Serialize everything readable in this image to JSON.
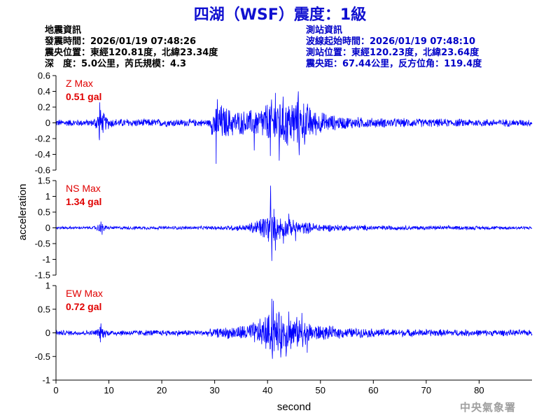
{
  "title": "四湖（WSF）震度：1級",
  "earthquake_info": {
    "heading": "地震資訊",
    "origin_time": "發震時間：2026/01/19 07:48:26",
    "epicenter": "震央位置：東經120.81度，北緯23.34度",
    "depth_magnitude": "深　度：5.0公里，芮氏規模：4.3"
  },
  "station_info": {
    "heading": "測站資訊",
    "wave_start": "波線起始時間：2026/01/19 07:48:10",
    "station_location": "測站位置：東經120.23度，北緯23.64度",
    "distance_azimuth": "震央距：67.44公里，反方位角：119.4度"
  },
  "credit": "中央氣象署",
  "chart_data": {
    "type": "line",
    "xlabel": "second",
    "ylabel": "acceleration",
    "xlim": [
      0,
      90
    ],
    "xticks": [
      0,
      10,
      20,
      30,
      40,
      50,
      60,
      70,
      80
    ],
    "line_color": "#0000ff",
    "max_label_color": "#e00000",
    "panels": [
      {
        "name": "Z",
        "max_title": "Z Max",
        "max_value": "0.51 gal",
        "ylim": [
          -0.6,
          0.6
        ],
        "yticks": [
          -0.6,
          -0.4,
          -0.2,
          0,
          0.2,
          0.4,
          0.6
        ],
        "ytick_labels": [
          "-0.6",
          "-0.4",
          "-0.2",
          "0",
          "0.2",
          "0.4",
          "0.6"
        ],
        "envelope": [
          [
            0,
            0.05
          ],
          [
            7,
            0.05
          ],
          [
            8.3,
            0.22
          ],
          [
            9.5,
            0.1
          ],
          [
            11,
            0.06
          ],
          [
            29,
            0.05
          ],
          [
            30,
            0.32
          ],
          [
            33,
            0.2
          ],
          [
            35,
            0.17
          ],
          [
            38,
            0.2
          ],
          [
            40,
            0.3
          ],
          [
            42,
            0.38
          ],
          [
            45,
            0.35
          ],
          [
            47,
            0.32
          ],
          [
            49,
            0.18
          ],
          [
            53,
            0.1
          ],
          [
            60,
            0.07
          ],
          [
            70,
            0.06
          ],
          [
            90,
            0.05
          ]
        ],
        "peaks": [
          [
            8.3,
            0.26
          ],
          [
            8.2,
            -0.22
          ],
          [
            30.5,
            0.3
          ],
          [
            30.3,
            -0.52
          ],
          [
            41.5,
            0.38
          ],
          [
            42.2,
            -0.48
          ],
          [
            45.8,
            0.4
          ],
          [
            46,
            -0.41
          ],
          [
            37.5,
            -0.35
          ],
          [
            40.5,
            -0.42
          ]
        ]
      },
      {
        "name": "NS",
        "max_title": "NS Max",
        "max_value": "1.34 gal",
        "ylim": [
          -1.5,
          1.5
        ],
        "yticks": [
          -1.5,
          -1,
          -0.5,
          0,
          0.5,
          1,
          1.5
        ],
        "ytick_labels": [
          "-1.5",
          "-1",
          "-0.5",
          "0",
          "0.5",
          "1",
          "1.5"
        ],
        "envelope": [
          [
            0,
            0.05
          ],
          [
            7,
            0.05
          ],
          [
            8.5,
            0.18
          ],
          [
            10,
            0.06
          ],
          [
            29,
            0.06
          ],
          [
            32,
            0.09
          ],
          [
            36,
            0.12
          ],
          [
            38,
            0.3
          ],
          [
            40,
            0.55
          ],
          [
            42,
            0.45
          ],
          [
            44,
            0.3
          ],
          [
            47,
            0.22
          ],
          [
            50,
            0.15
          ],
          [
            55,
            0.1
          ],
          [
            65,
            0.08
          ],
          [
            90,
            0.06
          ]
        ],
        "peaks": [
          [
            8.5,
            0.2
          ],
          [
            8.7,
            -0.22
          ],
          [
            40.5,
            0.78
          ],
          [
            40.8,
            -1.05
          ],
          [
            40.6,
            1.34
          ],
          [
            41.5,
            -0.72
          ],
          [
            41.2,
            0.6
          ],
          [
            43,
            -0.5
          ],
          [
            44,
            0.45
          ],
          [
            45.3,
            -0.42
          ]
        ]
      },
      {
        "name": "EW",
        "max_title": "EW Max",
        "max_value": "0.72 gal",
        "ylim": [
          -1,
          1
        ],
        "yticks": [
          -1,
          -0.5,
          0,
          0.5,
          1
        ],
        "ytick_labels": [
          "-1",
          "-0.5",
          "0",
          "0.5",
          "1"
        ],
        "envelope": [
          [
            0,
            0.06
          ],
          [
            7,
            0.06
          ],
          [
            8.5,
            0.15
          ],
          [
            10,
            0.07
          ],
          [
            28,
            0.07
          ],
          [
            31,
            0.12
          ],
          [
            35,
            0.18
          ],
          [
            38,
            0.28
          ],
          [
            40,
            0.45
          ],
          [
            42,
            0.5
          ],
          [
            44,
            0.42
          ],
          [
            46,
            0.35
          ],
          [
            48,
            0.25
          ],
          [
            50,
            0.18
          ],
          [
            55,
            0.12
          ],
          [
            65,
            0.09
          ],
          [
            90,
            0.07
          ]
        ],
        "peaks": [
          [
            8.5,
            0.2
          ],
          [
            8.4,
            -0.2
          ],
          [
            40.8,
            0.72
          ],
          [
            41.1,
            0.68
          ],
          [
            40.9,
            -0.55
          ],
          [
            42.5,
            -0.52
          ],
          [
            44,
            0.45
          ],
          [
            46.5,
            0.42
          ],
          [
            43.5,
            -0.5
          ],
          [
            47.5,
            -0.42
          ]
        ]
      }
    ]
  }
}
